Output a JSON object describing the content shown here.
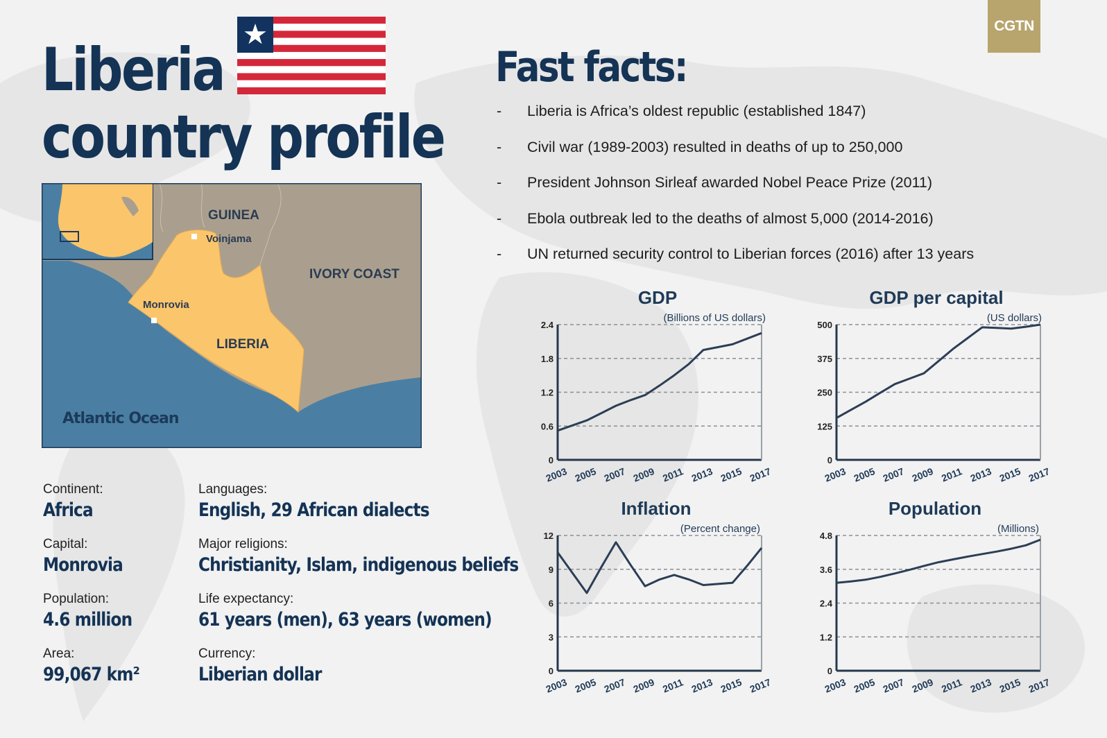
{
  "header": {
    "title_line1": "Liberia",
    "title_line2": "country profile",
    "logo": "CGTN"
  },
  "colors": {
    "navy": "#143355",
    "flag_red": "#d4283a",
    "flag_blue": "#12335f",
    "land": "#fbc56b",
    "neighbors": "#aa9f8e",
    "ocean": "#4a7fa3",
    "logo_gold": "#b8a46d"
  },
  "facts": {
    "title": "Fast facts:",
    "items": [
      "Liberia is Africa’s oldest republic (established 1847)",
      "Civil war (1989-2003) resulted in deaths of up to 250,000",
      "President Johnson Sirleaf awarded Nobel Peace Prize (2011)",
      "Ebola outbreak led to the deaths of almost 5,000 (2014-2016)",
      "UN returned security control to Liberian forces (2016) after 13 years"
    ]
  },
  "map": {
    "labels": {
      "guinea": "GUINEA",
      "voinjama": "Voinjama",
      "ivory_coast": "IVORY COAST",
      "monrovia": "Monrovia",
      "liberia": "LIBERIA",
      "ocean": "Atlantic Ocean"
    }
  },
  "profile": {
    "continent_label": "Continent:",
    "continent": "Africa",
    "capital_label": "Capital:",
    "capital": "Monrovia",
    "population_label": "Population:",
    "population": "4.6 million",
    "area_label": "Area:",
    "area": "99,067 km²",
    "languages_label": "Languages:",
    "languages": "English, 29 African dialects",
    "religions_label": "Major religions:",
    "religions": "Christianity, Islam, indigenous beliefs",
    "life_label": "Life expectancy:",
    "life": "61 years (men), 63 years (women)",
    "currency_label": "Currency:",
    "currency": "Liberian dollar"
  },
  "chart_data": [
    {
      "type": "line",
      "title": "GDP",
      "unit": "(Billions of US dollars)",
      "x": [
        2003,
        2004,
        2005,
        2006,
        2007,
        2008,
        2009,
        2010,
        2011,
        2012,
        2013,
        2014,
        2015,
        2016,
        2017
      ],
      "x_ticks": [
        "2003",
        "2005",
        "2007",
        "2009",
        "2011",
        "2013",
        "2015",
        "2017"
      ],
      "y_ticks": [
        "0",
        "0.6",
        "1.2",
        "1.8",
        "2.4"
      ],
      "ylim": [
        0,
        2.4
      ],
      "values": [
        0.52,
        0.61,
        0.7,
        0.83,
        0.96,
        1.06,
        1.15,
        1.32,
        1.5,
        1.7,
        1.95,
        2.0,
        2.05,
        2.15,
        2.25
      ],
      "grid": true
    },
    {
      "type": "line",
      "title": "GDP per capital",
      "unit": "(US dollars)",
      "x": [
        2003,
        2004,
        2005,
        2006,
        2007,
        2008,
        2009,
        2010,
        2011,
        2012,
        2013,
        2014,
        2015,
        2016,
        2017
      ],
      "x_ticks": [
        "2003",
        "2005",
        "2007",
        "2009",
        "2011",
        "2013",
        "2015",
        "2017"
      ],
      "y_ticks": [
        "0",
        "125",
        "250",
        "375",
        "500"
      ],
      "ylim": [
        0,
        500
      ],
      "values": [
        155,
        185,
        215,
        248,
        280,
        300,
        320,
        365,
        410,
        450,
        490,
        488,
        485,
        492,
        500
      ],
      "grid": true
    },
    {
      "type": "line",
      "title": "Inflation",
      "unit": "(Percent change)",
      "x": [
        2003,
        2004,
        2005,
        2006,
        2007,
        2008,
        2009,
        2010,
        2011,
        2012,
        2013,
        2014,
        2015,
        2016,
        2017
      ],
      "x_ticks": [
        "2003",
        "2005",
        "2007",
        "2009",
        "2011",
        "2013",
        "2015",
        "2017"
      ],
      "y_ticks": [
        "0",
        "3",
        "6",
        "9",
        "12"
      ],
      "ylim": [
        0,
        12
      ],
      "values": [
        10.5,
        8.7,
        6.9,
        9.2,
        11.4,
        9.4,
        7.5,
        8.1,
        8.5,
        8.1,
        7.6,
        7.7,
        7.8,
        9.3,
        10.9
      ],
      "grid": true
    },
    {
      "type": "line",
      "title": "Population",
      "unit": "(Millions)",
      "x": [
        2003,
        2004,
        2005,
        2006,
        2007,
        2008,
        2009,
        2010,
        2011,
        2012,
        2013,
        2014,
        2015,
        2016,
        2017
      ],
      "x_ticks": [
        "2003",
        "2005",
        "2007",
        "2009",
        "2011",
        "2013",
        "2015",
        "2017"
      ],
      "y_ticks": [
        "0",
        "1.2",
        "2.4",
        "3.6",
        "4.8"
      ],
      "ylim": [
        0,
        4.8
      ],
      "values": [
        3.12,
        3.17,
        3.23,
        3.33,
        3.45,
        3.58,
        3.72,
        3.85,
        3.95,
        4.05,
        4.14,
        4.23,
        4.33,
        4.45,
        4.65
      ],
      "grid": true
    }
  ]
}
